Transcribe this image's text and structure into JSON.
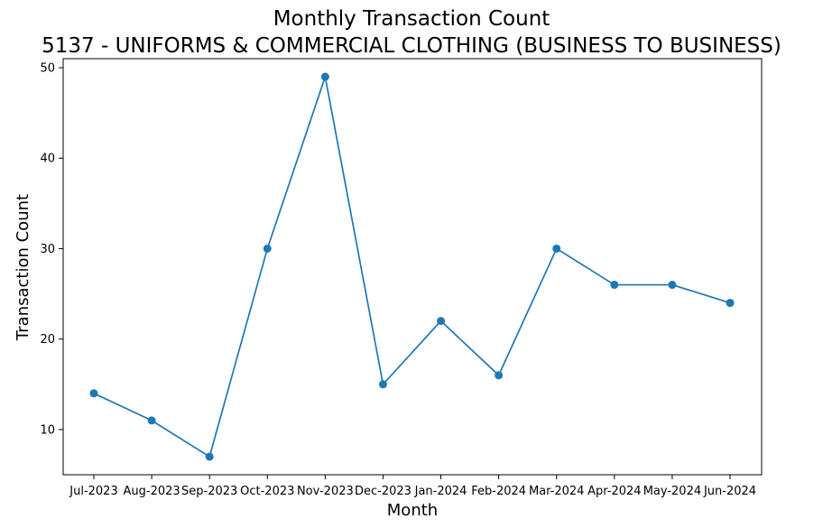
{
  "chart_data": {
    "type": "line",
    "title": "Monthly Transaction Count",
    "subtitle": "5137 - UNIFORMS & COMMERCIAL CLOTHING (BUSINESS TO BUSINESS)",
    "xlabel": "Month",
    "ylabel": "Transaction Count",
    "categories": [
      "Jul-2023",
      "Aug-2023",
      "Sep-2023",
      "Oct-2023",
      "Nov-2023",
      "Dec-2023",
      "Jan-2024",
      "Feb-2024",
      "Mar-2024",
      "Apr-2024",
      "May-2024",
      "Jun-2024"
    ],
    "series": [
      {
        "values": [
          14,
          11,
          7,
          30,
          49,
          15,
          22,
          16,
          30,
          26,
          26,
          24
        ],
        "color": "#1f77b4"
      }
    ],
    "yticks": [
      10,
      20,
      30,
      40,
      50
    ],
    "ylim": [
      5,
      51
    ],
    "grid": false,
    "legend": false
  }
}
